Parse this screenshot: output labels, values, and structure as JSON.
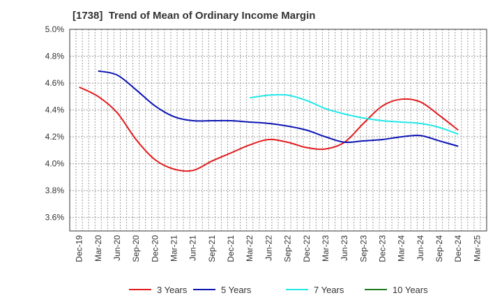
{
  "chart_data": {
    "type": "line",
    "title": "[1738]  Trend of Mean of Ordinary Income Margin",
    "xlabel": "",
    "ylabel": "",
    "ylim": [
      3.5,
      5.0
    ],
    "y_ticks": [
      "5.0%",
      "4.8%",
      "4.6%",
      "4.4%",
      "4.2%",
      "4.0%",
      "3.8%",
      "3.6%"
    ],
    "y_tick_values": [
      5.0,
      4.8,
      4.6,
      4.4,
      4.2,
      4.0,
      3.8,
      3.6
    ],
    "x_ticks": [
      "Dec-19",
      "Mar-20",
      "Jun-20",
      "Sep-20",
      "Dec-20",
      "Mar-21",
      "Jun-21",
      "Sep-21",
      "Dec-21",
      "Mar-22",
      "Jun-22",
      "Sep-22",
      "Dec-22",
      "Mar-23",
      "Jun-23",
      "Sep-23",
      "Dec-23",
      "Mar-24",
      "Jun-24",
      "Sep-24",
      "Dec-24",
      "Mar-25"
    ],
    "grid": true,
    "legend_position": "bottom",
    "series": [
      {
        "name": "3 Years",
        "color": "#e31a1c",
        "x": [
          "Dec-19",
          "Mar-20",
          "Jun-20",
          "Sep-20",
          "Dec-20",
          "Mar-21",
          "Jun-21",
          "Sep-21",
          "Dec-21",
          "Mar-22",
          "Jun-22",
          "Sep-22",
          "Dec-22",
          "Mar-23",
          "Jun-23",
          "Sep-23",
          "Dec-23",
          "Mar-24",
          "Jun-24",
          "Sep-24",
          "Dec-24"
        ],
        "values": [
          4.57,
          4.5,
          4.38,
          4.18,
          4.03,
          3.96,
          3.95,
          4.02,
          4.08,
          4.14,
          4.18,
          4.16,
          4.12,
          4.11,
          4.16,
          4.3,
          4.43,
          4.48,
          4.46,
          4.36,
          4.25
        ]
      },
      {
        "name": "5 Years",
        "color": "#0a14b4",
        "x": [
          "Mar-20",
          "Jun-20",
          "Sep-20",
          "Dec-20",
          "Mar-21",
          "Jun-21",
          "Sep-21",
          "Dec-21",
          "Mar-22",
          "Jun-22",
          "Sep-22",
          "Dec-22",
          "Mar-23",
          "Jun-23",
          "Sep-23",
          "Dec-23",
          "Mar-24",
          "Jun-24",
          "Sep-24",
          "Dec-24"
        ],
        "values": [
          4.69,
          4.66,
          4.55,
          4.43,
          4.35,
          4.32,
          4.32,
          4.32,
          4.31,
          4.3,
          4.28,
          4.25,
          4.2,
          4.16,
          4.17,
          4.18,
          4.2,
          4.21,
          4.17,
          4.13
        ]
      },
      {
        "name": "7 Years",
        "color": "#20e8e8",
        "x": [
          "Mar-22",
          "Jun-22",
          "Sep-22",
          "Dec-22",
          "Mar-23",
          "Jun-23",
          "Sep-23",
          "Dec-23",
          "Mar-24",
          "Jun-24",
          "Sep-24",
          "Dec-24"
        ],
        "values": [
          4.49,
          4.51,
          4.51,
          4.47,
          4.41,
          4.37,
          4.34,
          4.32,
          4.31,
          4.3,
          4.27,
          4.22
        ]
      },
      {
        "name": "10 Years",
        "color": "#1a7a1a",
        "x": [],
        "values": []
      }
    ]
  }
}
